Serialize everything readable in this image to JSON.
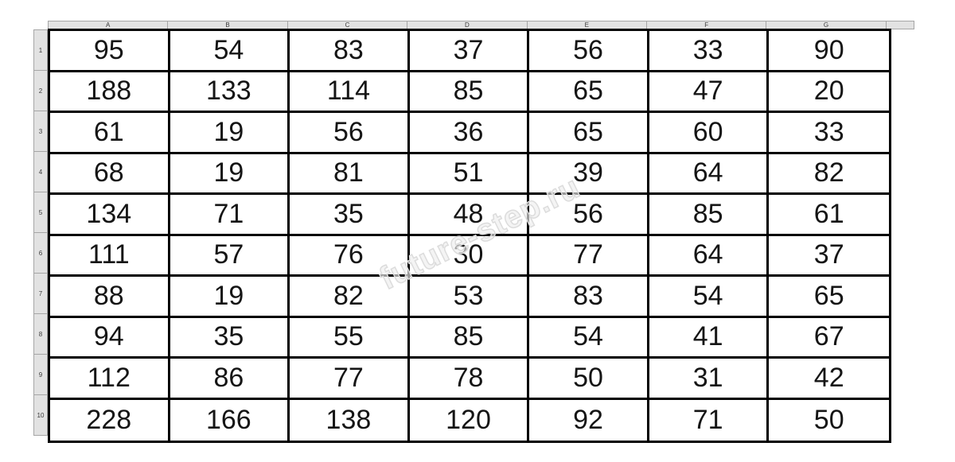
{
  "app": {
    "type": "spreadsheet-grid"
  },
  "column_headers": [
    "A",
    "B",
    "C",
    "D",
    "E",
    "F",
    "G"
  ],
  "row_headers": [
    "1",
    "2",
    "3",
    "4",
    "5",
    "6",
    "7",
    "8",
    "9",
    "10"
  ],
  "grid": {
    "rows": [
      [
        95,
        54,
        83,
        37,
        56,
        33,
        90
      ],
      [
        188,
        133,
        114,
        85,
        65,
        47,
        20
      ],
      [
        61,
        19,
        56,
        36,
        65,
        60,
        33
      ],
      [
        68,
        19,
        81,
        51,
        39,
        64,
        82
      ],
      [
        134,
        71,
        35,
        48,
        56,
        85,
        61
      ],
      [
        111,
        57,
        76,
        30,
        77,
        64,
        37
      ],
      [
        88,
        19,
        82,
        53,
        83,
        54,
        65
      ],
      [
        94,
        35,
        55,
        85,
        54,
        41,
        67
      ],
      [
        112,
        86,
        77,
        78,
        50,
        31,
        42
      ],
      [
        228,
        166,
        138,
        120,
        92,
        71,
        50
      ]
    ]
  },
  "watermark": {
    "text": "future-step.ru"
  },
  "colors": {
    "header_bg": "#e2e2e2",
    "header_border": "#a6a6a6",
    "grid_border": "#000000",
    "cell_text": "#151515",
    "header_text": "#3c3c3c",
    "watermark_outline": "#dcdcdc"
  }
}
